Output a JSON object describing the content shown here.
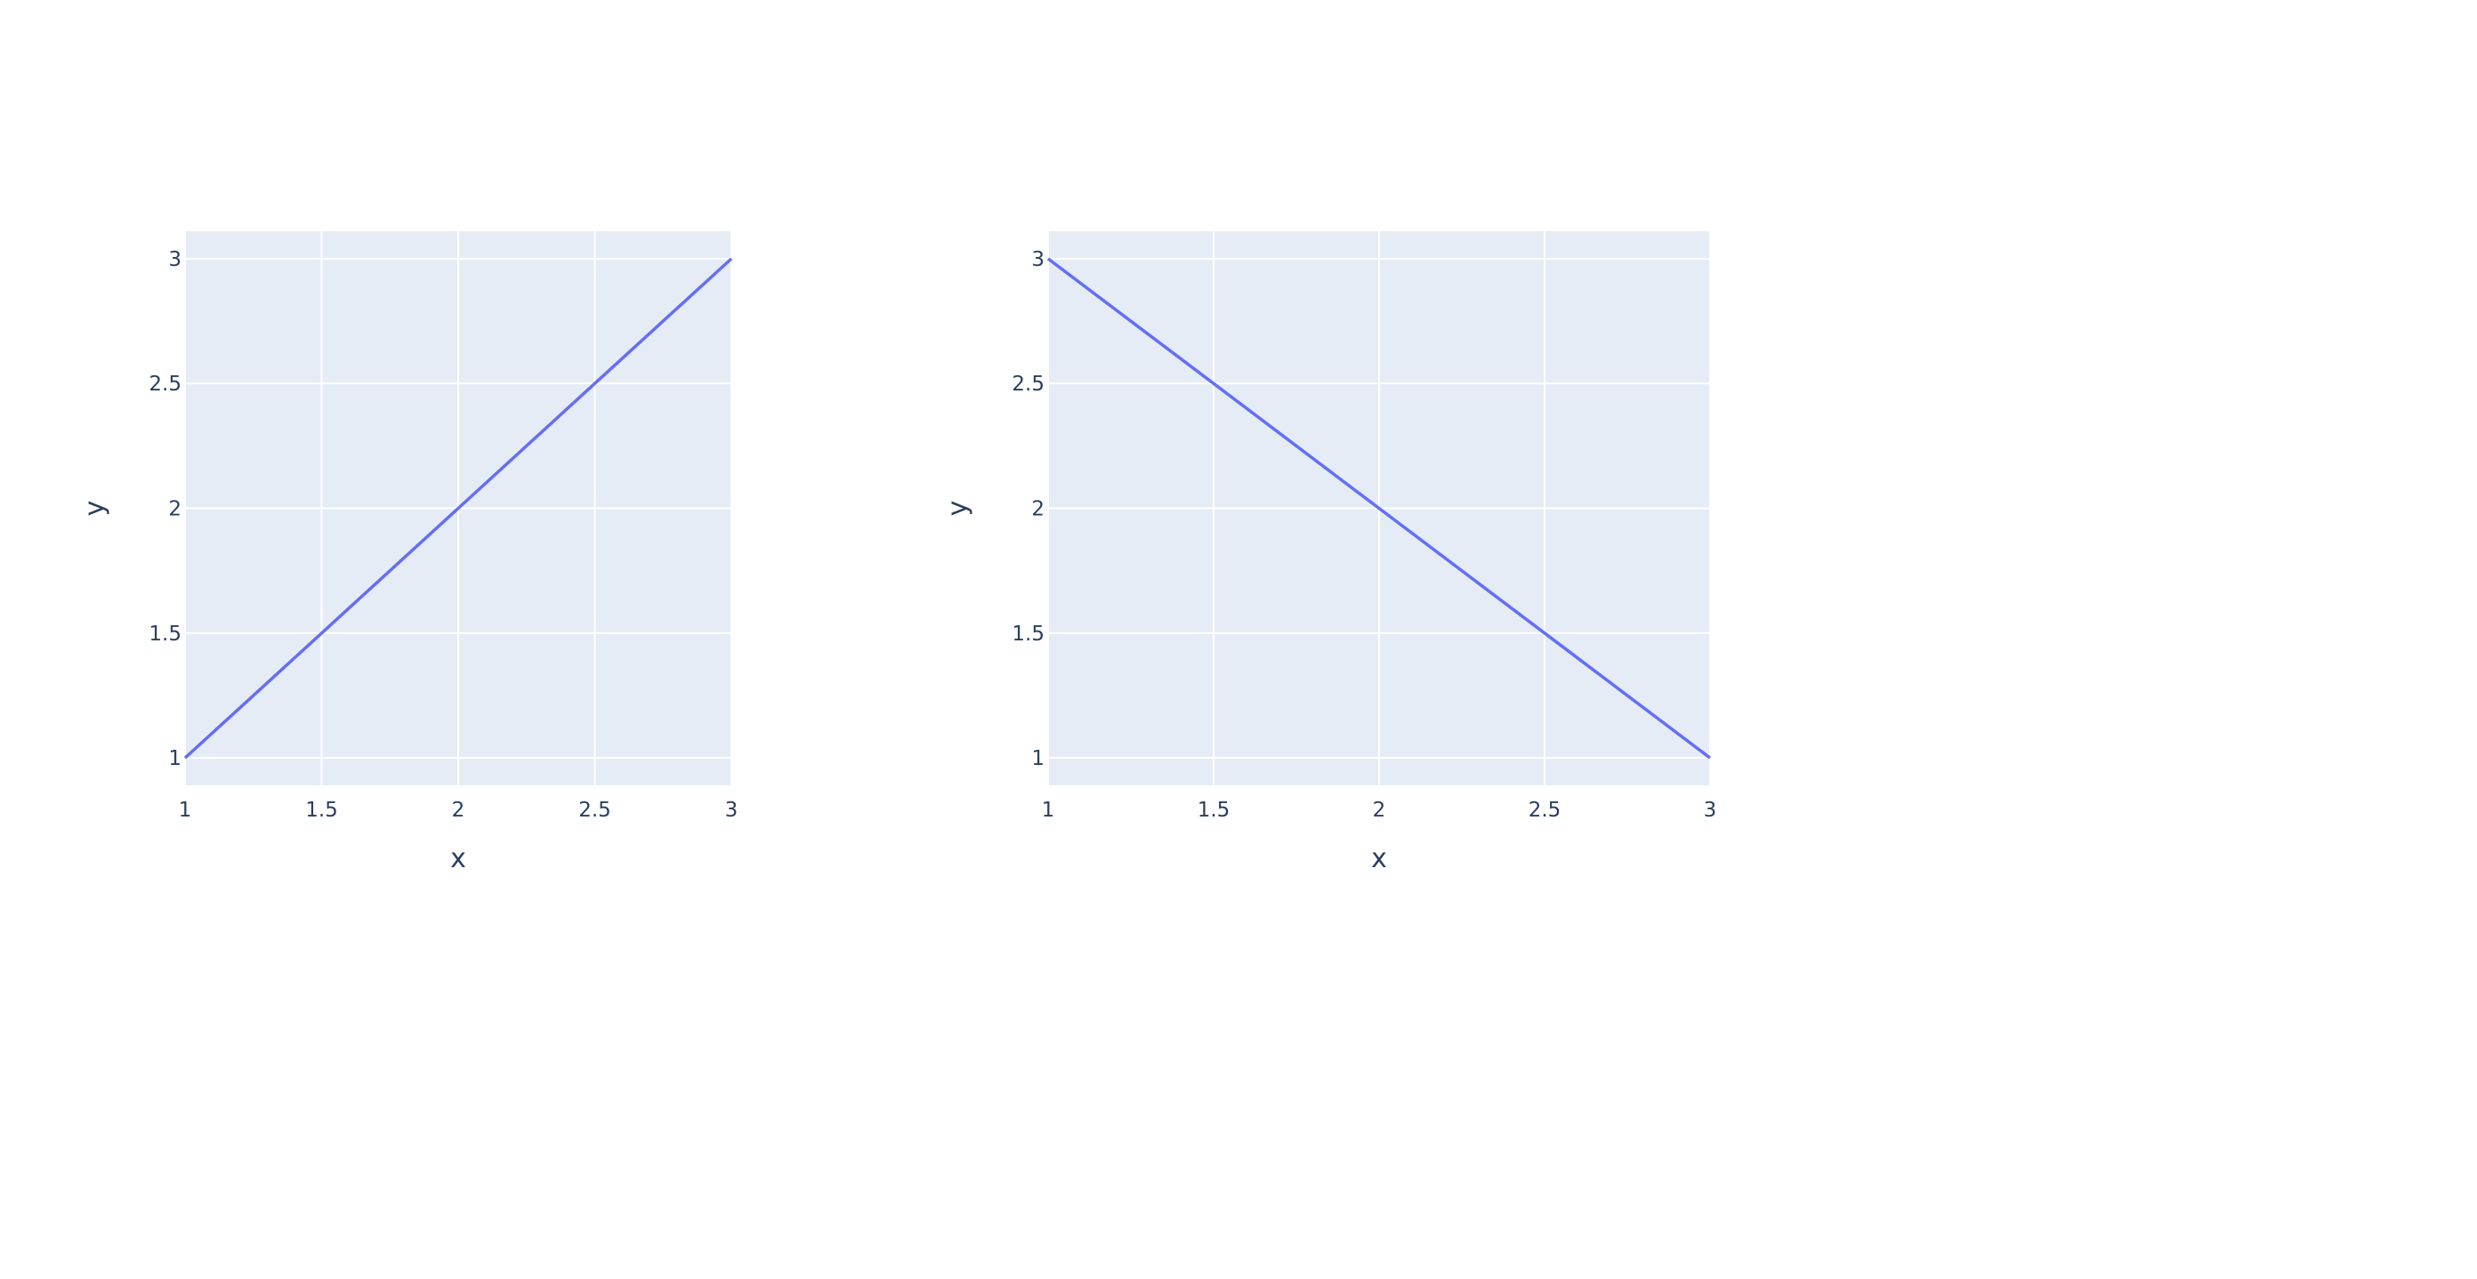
{
  "chart_data": [
    {
      "type": "line",
      "x": [
        1,
        2,
        3
      ],
      "y": [
        1,
        2,
        3
      ],
      "xlabel": "x",
      "ylabel": "y",
      "xlim": [
        1,
        3
      ],
      "ylim": [
        0.89,
        3.11
      ],
      "xticks": [
        "1",
        "1.5",
        "2",
        "2.5",
        "3"
      ],
      "yticks": [
        "1",
        "1.5",
        "2",
        "2.5",
        "3"
      ],
      "grid": true,
      "line_color": "#636efa",
      "plot_bg": "#e5ecf6"
    },
    {
      "type": "line",
      "x": [
        1,
        2,
        3
      ],
      "y": [
        3,
        2,
        1
      ],
      "xlabel": "x",
      "ylabel": "y",
      "xlim": [
        1,
        3
      ],
      "ylim": [
        0.89,
        3.11
      ],
      "xticks": [
        "1",
        "1.5",
        "2",
        "2.5",
        "3"
      ],
      "yticks": [
        "1",
        "1.5",
        "2",
        "2.5",
        "3"
      ],
      "grid": true,
      "line_color": "#636efa",
      "plot_bg": "#e5ecf6"
    }
  ]
}
